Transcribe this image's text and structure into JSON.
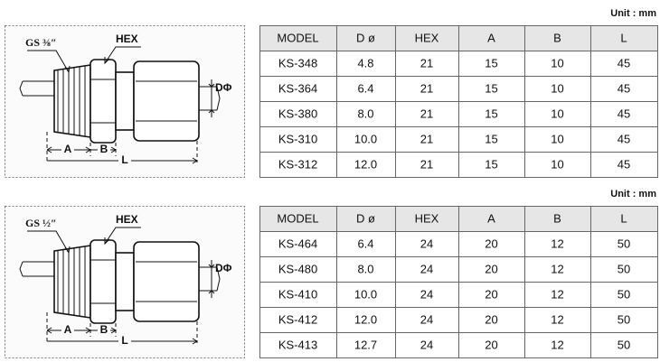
{
  "sections": [
    {
      "unit": "Unit : mm",
      "diagram": {
        "thread": "GS ⅜″",
        "hex": "HEX",
        "d": "DΦ",
        "a": "A",
        "b": "B",
        "l": "L"
      },
      "table": {
        "header": [
          "MODEL",
          "D ø",
          "HEX",
          "A",
          "B",
          "L"
        ],
        "rows": [
          [
            "KS-348",
            "4.8",
            "21",
            "15",
            "10",
            "45"
          ],
          [
            "KS-364",
            "6.4",
            "21",
            "15",
            "10",
            "45"
          ],
          [
            "KS-380",
            "8.0",
            "21",
            "15",
            "10",
            "45"
          ],
          [
            "KS-310",
            "10.0",
            "21",
            "15",
            "10",
            "45"
          ],
          [
            "KS-312",
            "12.0",
            "21",
            "15",
            "10",
            "45"
          ]
        ]
      }
    },
    {
      "unit": "Unit : mm",
      "diagram": {
        "thread": "GS ½″",
        "hex": "HEX",
        "d": "DΦ",
        "a": "A",
        "b": "B",
        "l": "L"
      },
      "table": {
        "header": [
          "MODEL",
          "D ø",
          "HEX",
          "A",
          "B",
          "L"
        ],
        "rows": [
          [
            "KS-464",
            "6.4",
            "24",
            "20",
            "12",
            "50"
          ],
          [
            "KS-480",
            "8.0",
            "24",
            "20",
            "12",
            "50"
          ],
          [
            "KS-410",
            "10.0",
            "24",
            "20",
            "12",
            "50"
          ],
          [
            "KS-412",
            "12.0",
            "24",
            "20",
            "12",
            "50"
          ],
          [
            "KS-413",
            "12.7",
            "24",
            "20",
            "12",
            "50"
          ]
        ]
      }
    }
  ]
}
